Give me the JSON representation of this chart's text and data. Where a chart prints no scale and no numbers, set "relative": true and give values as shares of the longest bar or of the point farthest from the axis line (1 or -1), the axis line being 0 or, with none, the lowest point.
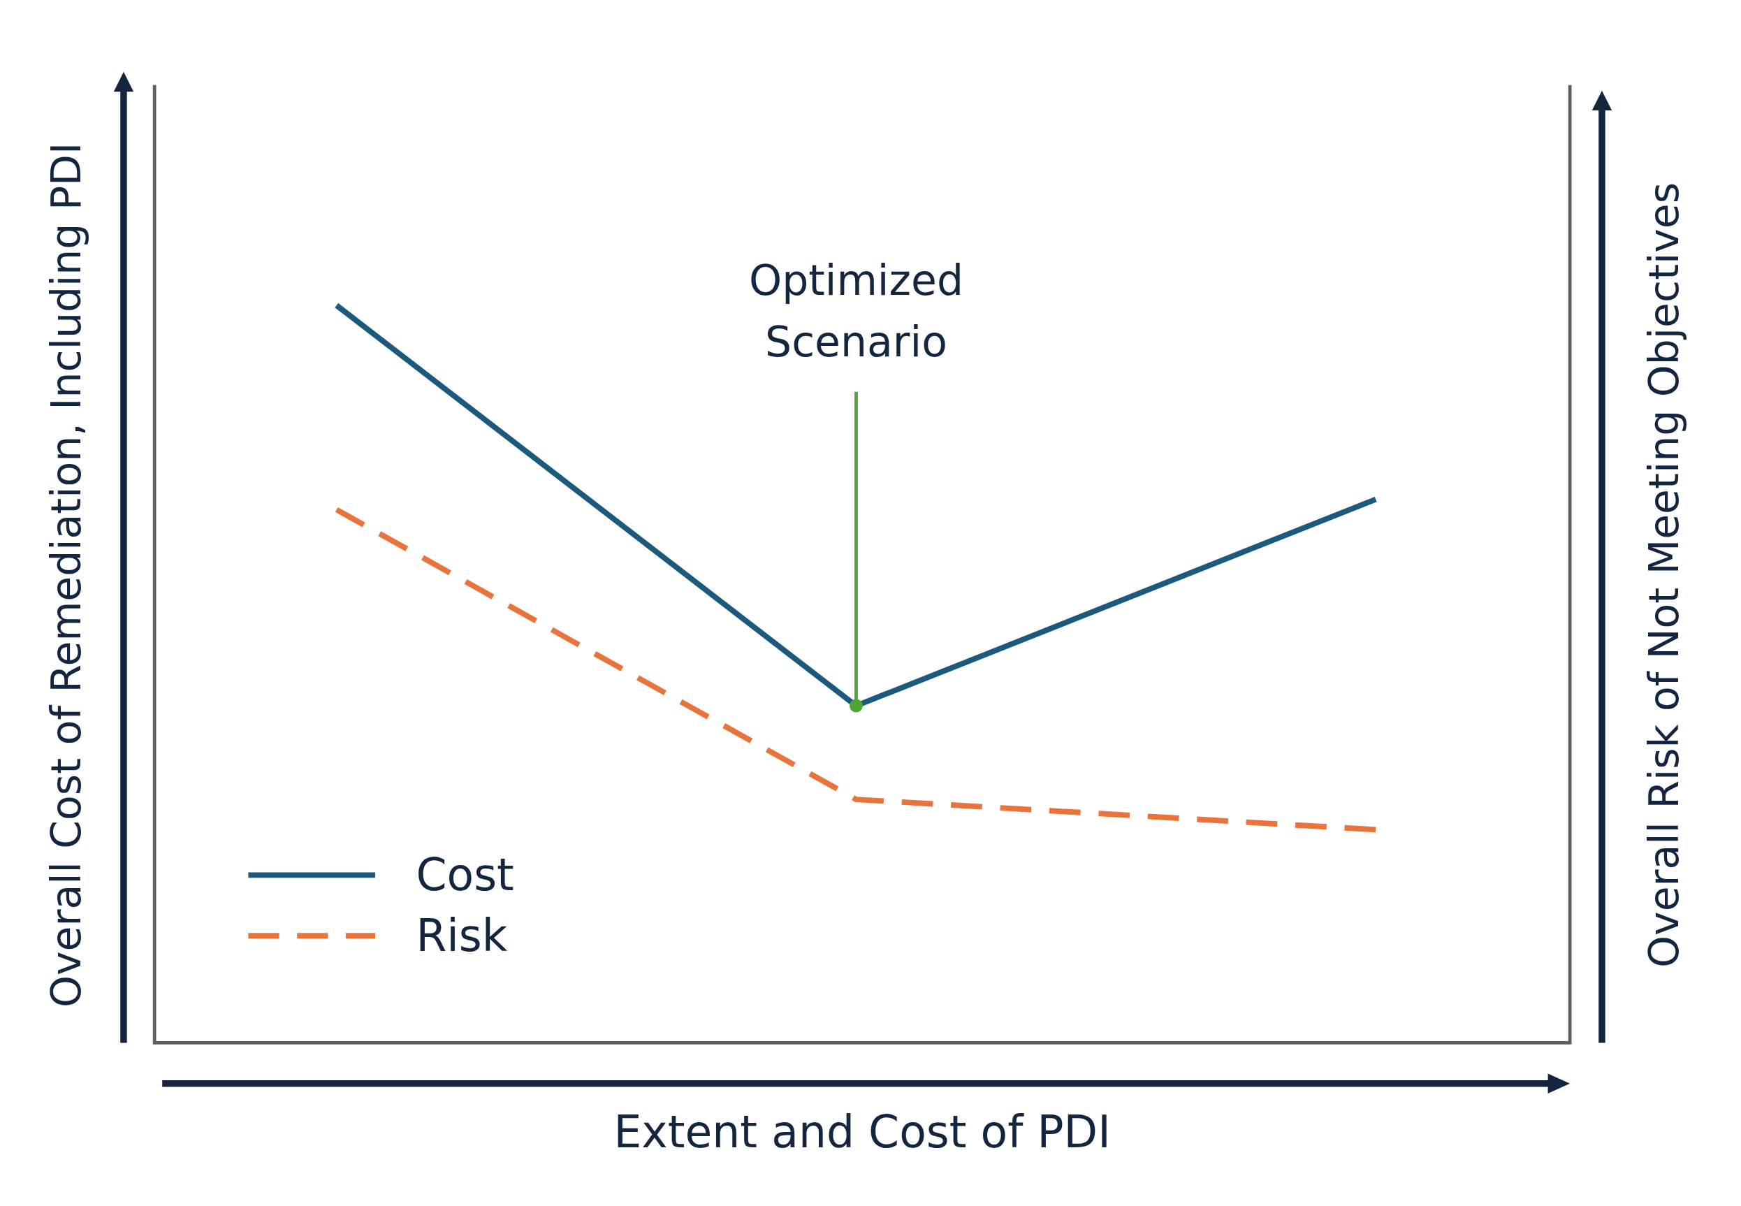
{
  "chart_data": {
    "type": "line",
    "relative": true,
    "xlabel": "Extent and Cost of PDI",
    "ylabel": "Overall Cost of Remediation, Including PDI",
    "y2label": "Overall Risk of Not Meeting Objectives",
    "categories": [
      null,
      null,
      null
    ],
    "legend": "bottom left",
    "series": [
      {
        "name": "Cost",
        "color": "#1b5a7d",
        "values": [
          1,
          0.457,
          0.737
        ],
        "line_style": "solid"
      },
      {
        "name": "Risk",
        "color": "#e8743b",
        "values": [
          0.723,
          0.33,
          0.289
        ],
        "line_style": "dashed"
      }
    ],
    "annotations": [
      "Optimized Scenario"
    ]
  }
}
